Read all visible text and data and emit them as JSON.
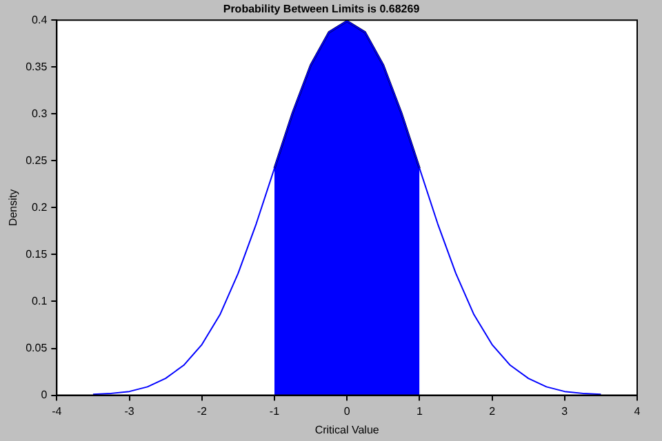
{
  "chart_data": {
    "type": "line",
    "title": "Probability Between Limits is 0.68269",
    "xlabel": "Critical Value",
    "ylabel": "Density",
    "xlim": [
      -4,
      4
    ],
    "xticks": [
      -4,
      -3,
      -2,
      -1,
      0,
      1,
      2,
      3,
      4
    ],
    "ylim": [
      0,
      0.4
    ],
    "yticks": [
      0,
      0.05,
      0.1,
      0.15,
      0.2,
      0.25,
      0.3,
      0.35,
      0.4
    ],
    "grid": false,
    "legend": false,
    "marker": "none",
    "line_style": "solid",
    "series": [
      {
        "type": "area",
        "color": "#0000ff",
        "x": [
          -1,
          -0.75,
          -0.5,
          -0.25,
          0,
          0.25,
          0.5,
          0.75,
          1
        ],
        "values": [
          0.242,
          0.301,
          0.352,
          0.387,
          0.399,
          0.387,
          0.352,
          0.301,
          0.242
        ]
      },
      {
        "type": "line",
        "color": "#0000ff",
        "x": [
          -3.5,
          -3.25,
          -3,
          -2.75,
          -2.5,
          -2.25,
          -2,
          -1.75,
          -1.5,
          -1.25,
          -1,
          -0.75,
          -0.5,
          -0.25,
          0,
          0.25,
          0.5,
          0.75,
          1,
          1.25,
          1.5,
          1.75,
          2,
          2.25,
          2.5,
          2.75,
          3,
          3.25,
          3.5
        ],
        "values": [
          0.001,
          0.002,
          0.004,
          0.009,
          0.018,
          0.032,
          0.054,
          0.086,
          0.13,
          0.183,
          0.242,
          0.301,
          0.352,
          0.387,
          0.399,
          0.387,
          0.352,
          0.301,
          0.242,
          0.183,
          0.13,
          0.086,
          0.054,
          0.032,
          0.018,
          0.009,
          0.004,
          0.002,
          0.001
        ]
      }
    ]
  }
}
